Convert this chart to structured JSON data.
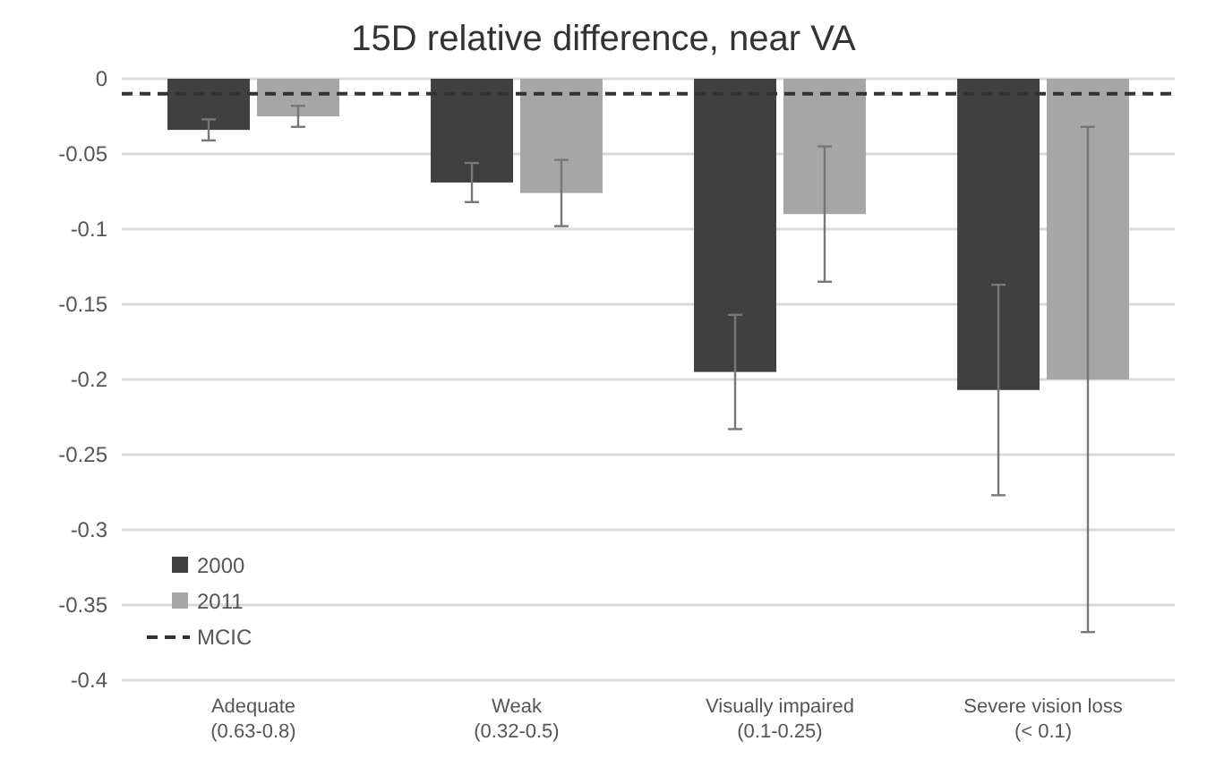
{
  "chart_data": {
    "type": "bar",
    "title": "15D relative difference, near VA",
    "categories": [
      "Adequate\n(0.63-0.8)",
      "Weak\n(0.32-0.5)",
      "Visually impaired\n(0.1-0.25)",
      "Severe vision loss\n(< 0.1)"
    ],
    "series": [
      {
        "name": "2000",
        "color": "#404040",
        "values": [
          -0.034,
          -0.069,
          -0.195,
          -0.207
        ],
        "errors": [
          0.007,
          0.013,
          0.038,
          0.07
        ]
      },
      {
        "name": "2011",
        "color": "#a6a6a6",
        "values": [
          -0.025,
          -0.076,
          -0.09,
          -0.2
        ],
        "errors": [
          0.007,
          0.022,
          0.045,
          0.168
        ]
      }
    ],
    "ylim": [
      -0.4,
      0
    ],
    "yticks": [
      0,
      -0.05,
      -0.1,
      -0.15,
      -0.2,
      -0.25,
      -0.3,
      -0.35,
      -0.4
    ],
    "ref_lines": [
      {
        "axis": "y",
        "value": -0.01,
        "label": "MCIC",
        "color": "#333333",
        "line_style": "dashed"
      }
    ],
    "grid": "y",
    "legend": "bottom left"
  }
}
